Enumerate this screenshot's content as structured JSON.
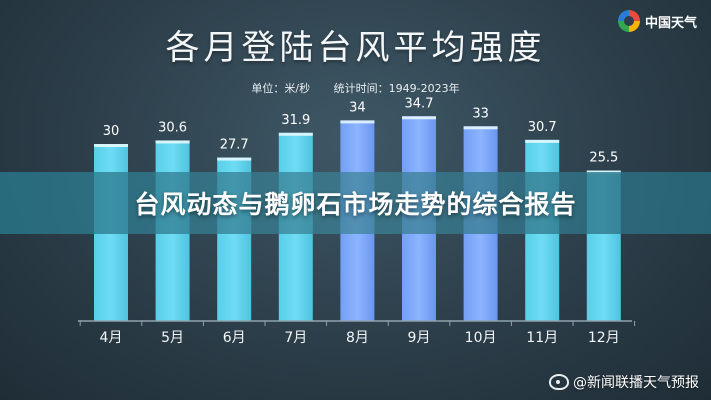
{
  "header": {
    "title": "各月登陆台风平均强度",
    "unit_label": "单位：米/秒",
    "period_label": "统计时间：1949-2023年"
  },
  "logo": {
    "name": "中国天气"
  },
  "banner": {
    "text": "台风动态与鹅卵石市场走势的综合报告"
  },
  "watermark": {
    "text": "@新闻联播天气预报"
  },
  "colors": {
    "bar_light": "#6fdcf4",
    "bar_highlight": "#8cb4ff",
    "axis": "#8fa3ad",
    "label_text": "#ffffff"
  },
  "chart_data": {
    "type": "bar",
    "title": "各月登陆台风平均强度",
    "xlabel": "",
    "ylabel": "",
    "categories": [
      "4月",
      "5月",
      "6月",
      "7月",
      "8月",
      "9月",
      "10月",
      "11月",
      "12月"
    ],
    "values": [
      30,
      30.6,
      27.7,
      31.9,
      34,
      34.7,
      33,
      30.7,
      25.5
    ],
    "value_labels": [
      "30",
      "30.6",
      "27.7",
      "31.9",
      "34",
      "34.7",
      "33",
      "30.7",
      "25.5"
    ],
    "highlight": [
      false,
      false,
      false,
      false,
      true,
      true,
      true,
      false,
      false
    ],
    "ylim": [
      0,
      40
    ],
    "grid": false,
    "legend": "none"
  }
}
